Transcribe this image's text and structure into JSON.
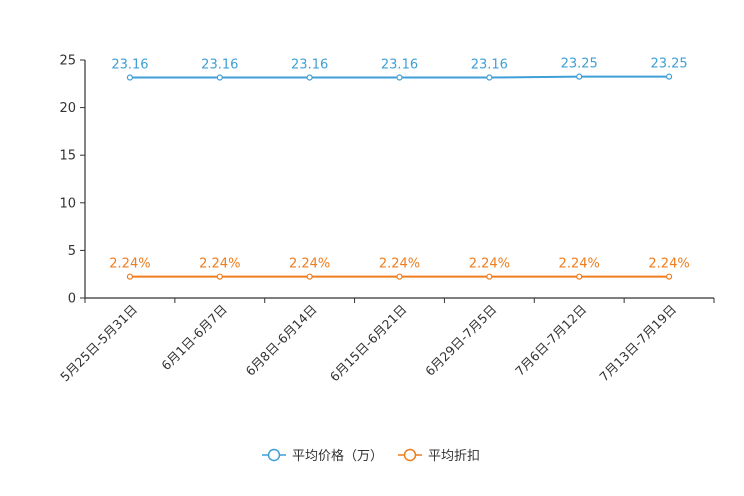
{
  "chart_data": {
    "type": "line",
    "title": "",
    "xlabel": "",
    "ylabel": "",
    "ylim": [
      0,
      25
    ],
    "yticks": [
      0,
      5,
      10,
      15,
      20,
      25
    ],
    "categories": [
      "5月25日-5月31日",
      "6月1日-6月7日",
      "6月8日-6月14日",
      "6月15日-6月21日",
      "6月29日-7月5日",
      "7月6日-7月12日",
      "7月13日-7月19日"
    ],
    "series": [
      {
        "name": "平均价格（万）",
        "color": "#3f9fd6",
        "values": [
          23.16,
          23.16,
          23.16,
          23.16,
          23.16,
          23.25,
          23.25
        ],
        "labels": [
          "23.16",
          "23.16",
          "23.16",
          "23.16",
          "23.16",
          "23.25",
          "23.25"
        ]
      },
      {
        "name": "平均折扣",
        "color": "#f07c1b",
        "values": [
          2.24,
          2.24,
          2.24,
          2.24,
          2.24,
          2.24,
          2.24
        ],
        "labels": [
          "2.24%",
          "2.24%",
          "2.24%",
          "2.24%",
          "2.24%",
          "2.24%",
          "2.24%"
        ]
      }
    ],
    "legend_position": "bottom-center",
    "grid": false
  }
}
